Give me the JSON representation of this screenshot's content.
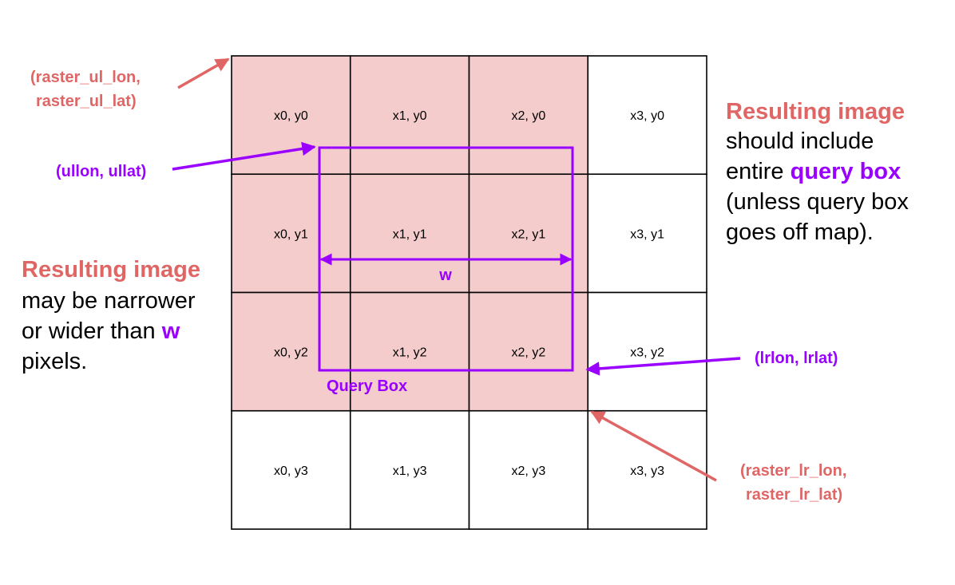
{
  "colors": {
    "tile_fill": "#f4cccc",
    "grid_line": "#000000",
    "accent_red": "#e06666",
    "accent_purple": "#9900ff"
  },
  "grid": {
    "rows": [
      [
        "x0, y0",
        "x1, y0",
        "x2, y0",
        "x3, y0"
      ],
      [
        "x0, y1",
        "x1, y1",
        "x2, y1",
        "x3, y1"
      ],
      [
        "x0, y2",
        "x1, y2",
        "x2, y2",
        "x3, y2"
      ],
      [
        "x0, y3",
        "x1, y3",
        "x2, y3",
        "x3, y3"
      ]
    ],
    "highlighted": [
      [
        true,
        true,
        true,
        false
      ],
      [
        true,
        true,
        true,
        false
      ],
      [
        true,
        true,
        true,
        false
      ],
      [
        false,
        false,
        false,
        false
      ]
    ]
  },
  "labels": {
    "raster_ul": [
      "(raster_ul_lon,",
      "raster_ul_lat)"
    ],
    "ullon_ullat": "(ullon, ullat)",
    "lrlon_lrlat": "(lrlon, lrlat)",
    "raster_lr": [
      "(raster_lr_lon,",
      "raster_lr_lat)"
    ],
    "width": "w",
    "query_box": "Query Box"
  },
  "note_right": {
    "line1_red": "Resulting image",
    "line2": "should include",
    "line3_prefix": "entire ",
    "line3_purple": "query box",
    "line4": "(unless query box",
    "line5": "goes off map)."
  },
  "note_left": {
    "line1_red": "Resulting image",
    "line2": "may be narrower",
    "line3_prefix": "or wider than ",
    "line3_purple": "w",
    "line4": "pixels."
  }
}
